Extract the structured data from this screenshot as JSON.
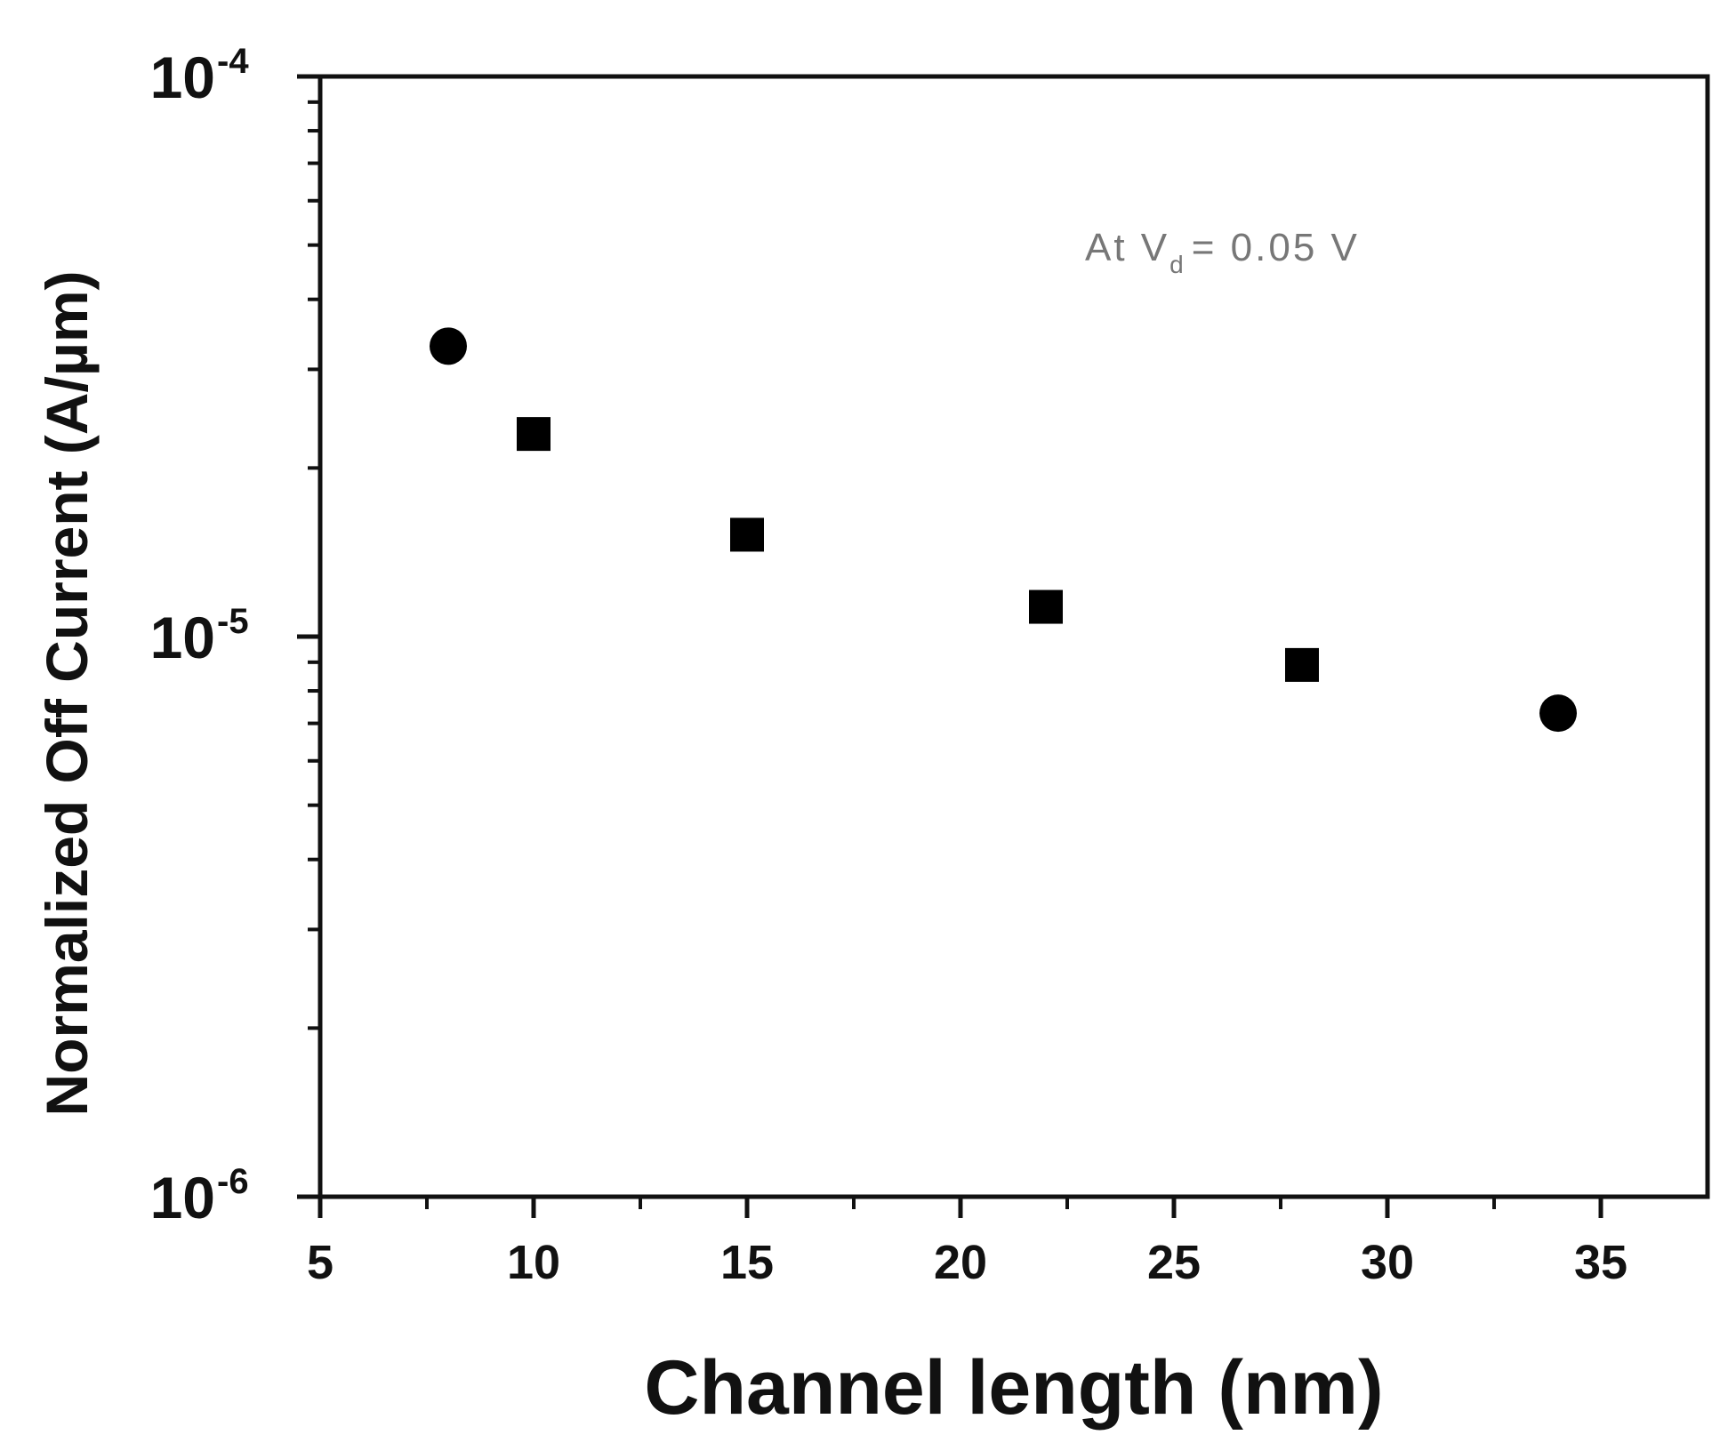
{
  "chart_data": {
    "type": "scatter",
    "xlabel": "Channel length (nm)",
    "ylabel": "Normalized Off Current (A/µm)",
    "xlim": [
      5,
      37.5
    ],
    "ylim": [
      1e-06,
      0.0001
    ],
    "yscale": "log",
    "xticks": [
      "5",
      "10",
      "15",
      "20",
      "25",
      "30",
      "35"
    ],
    "yticks": [
      {
        "value": 1e-06,
        "base": "10",
        "exp": "-6"
      },
      {
        "value": 1e-05,
        "base": "10",
        "exp": "-5"
      },
      {
        "value": 0.0001,
        "base": "10",
        "exp": "-4"
      }
    ],
    "annotation": {
      "prefix": "At V",
      "sub": "d",
      "suffix": "= 0.05 V"
    },
    "grid": false,
    "points": [
      {
        "x": 8,
        "y": 3.3e-05,
        "marker": "circle"
      },
      {
        "x": 10,
        "y": 2.3e-05,
        "marker": "square"
      },
      {
        "x": 15,
        "y": 1.52e-05,
        "marker": "square"
      },
      {
        "x": 22,
        "y": 1.13e-05,
        "marker": "square"
      },
      {
        "x": 28,
        "y": 8.9e-06,
        "marker": "square"
      },
      {
        "x": 34,
        "y": 7.3e-06,
        "marker": "circle"
      }
    ]
  }
}
